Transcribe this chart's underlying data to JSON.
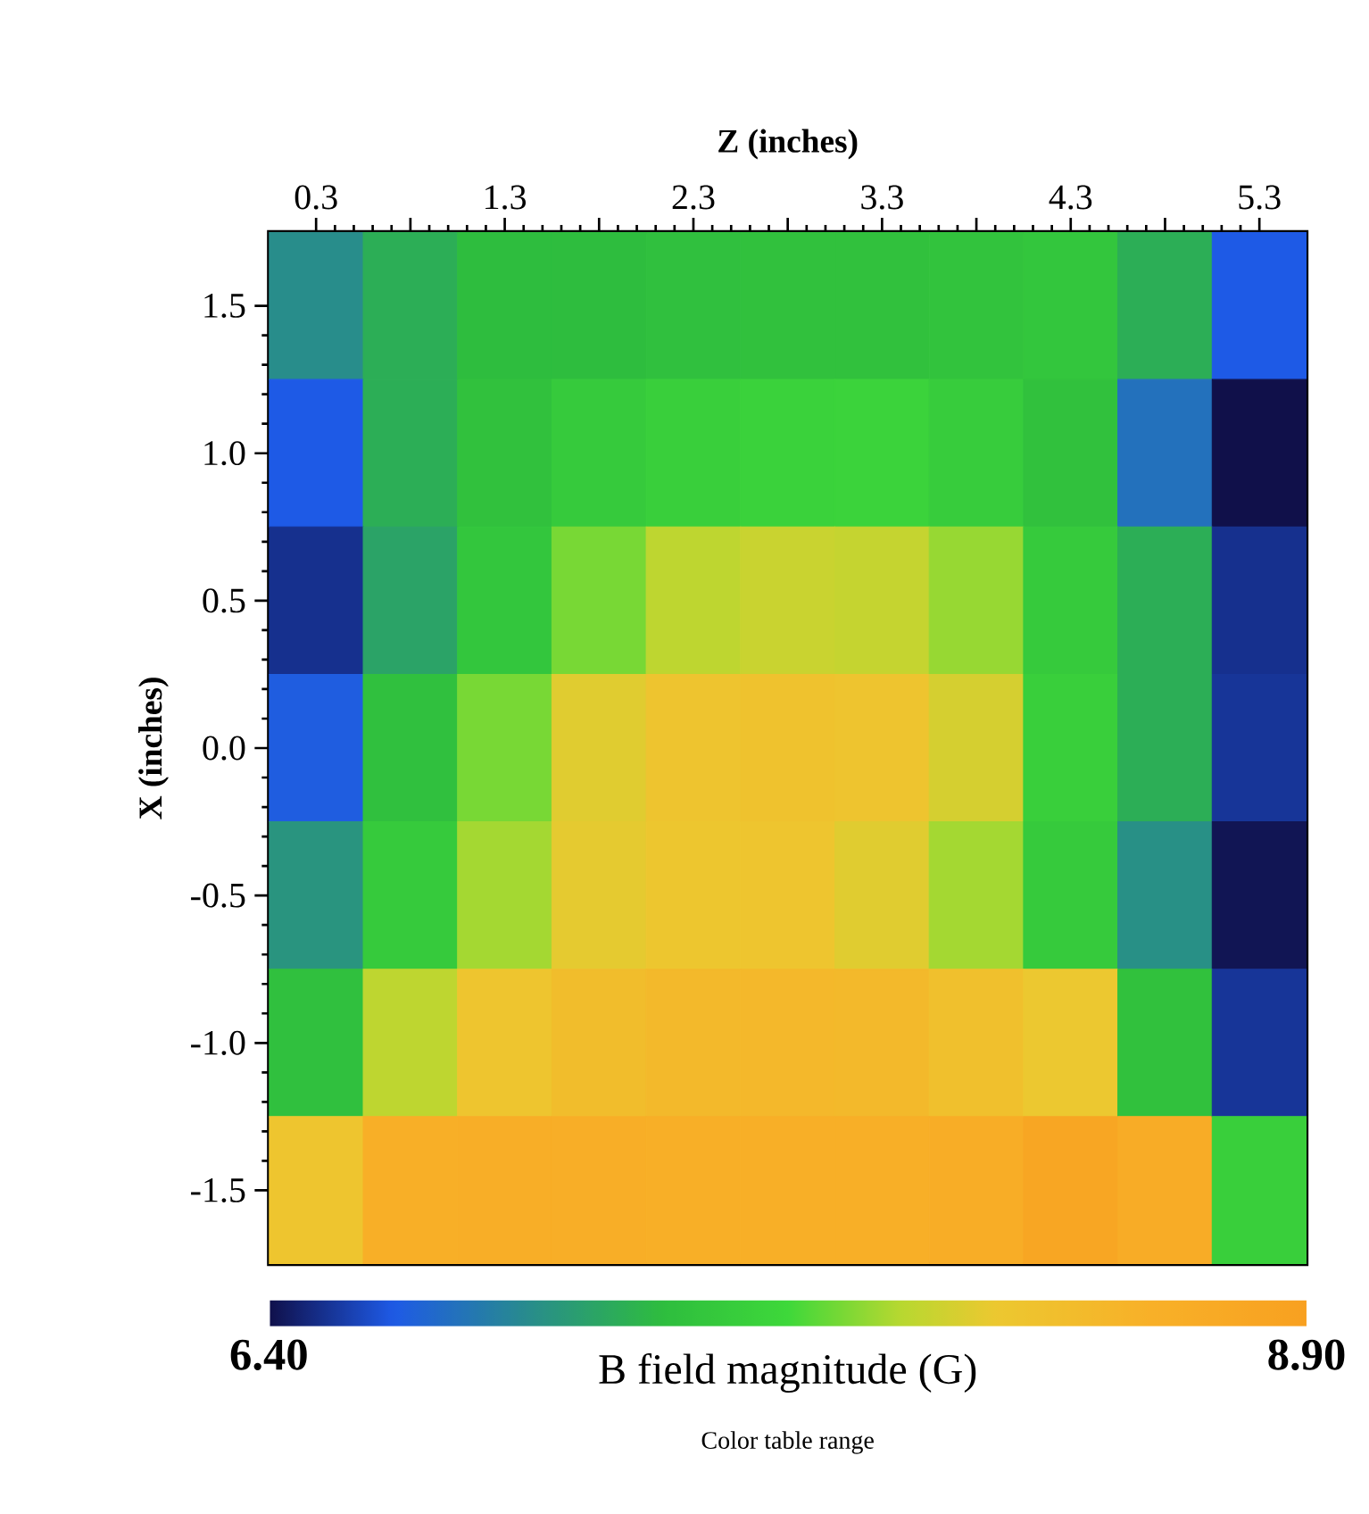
{
  "chart_data": {
    "type": "heatmap",
    "xlabel": "Z (inches)",
    "ylabel": "X (inches)",
    "clabel": "B field magnitude (G)",
    "annotations": [
      "Color table range"
    ],
    "categories": [
      "0.3",
      null,
      "1.3",
      null,
      "2.3",
      null,
      "3.3",
      null,
      "4.3",
      null,
      "5.3"
    ],
    "y_categories": [
      "1.5",
      "1.0",
      "0.5",
      "0.0",
      "-0.5",
      "-1.0",
      "-1.5"
    ],
    "clim": [
      6.4,
      8.9
    ],
    "cticks": [
      {
        "value": 6.4,
        "label": "6.40"
      },
      {
        "value": 8.9,
        "label": "8.90"
      }
    ],
    "cells": [
      [
        7.03,
        7.25,
        7.35,
        7.35,
        7.38,
        7.4,
        7.4,
        7.42,
        7.45,
        7.25,
        6.7
      ],
      [
        6.7,
        7.25,
        7.4,
        7.5,
        7.55,
        7.58,
        7.6,
        7.52,
        7.4,
        6.85,
        6.4
      ],
      [
        6.53,
        7.18,
        7.45,
        7.78,
        7.95,
        8.0,
        7.98,
        7.85,
        7.5,
        7.25,
        6.53
      ],
      [
        6.72,
        7.38,
        7.78,
        8.1,
        8.22,
        8.25,
        8.22,
        8.05,
        7.55,
        7.25,
        6.55
      ],
      [
        7.08,
        7.5,
        7.88,
        8.12,
        8.18,
        8.2,
        8.1,
        7.88,
        7.5,
        7.05,
        6.42
      ],
      [
        7.38,
        7.95,
        8.2,
        8.32,
        8.38,
        8.4,
        8.38,
        8.28,
        8.15,
        7.4,
        6.55
      ],
      [
        8.2,
        8.55,
        8.58,
        8.58,
        8.55,
        8.55,
        8.55,
        8.6,
        8.75,
        8.62,
        7.55
      ]
    ]
  }
}
